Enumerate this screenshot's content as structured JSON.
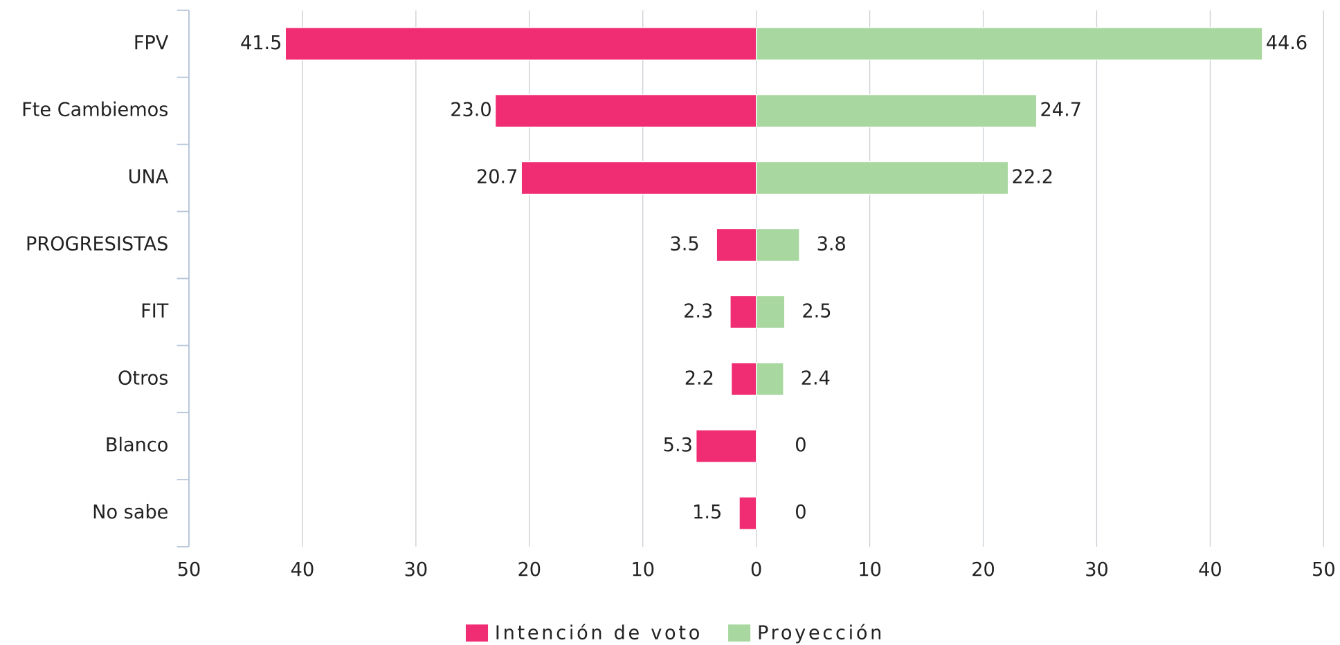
{
  "chart_data": {
    "type": "butterfly-bar",
    "categories": [
      "FPV",
      "Fte Cambiemos",
      "UNA",
      "PROGRESISTAS",
      "FIT",
      "Otros",
      "Blanco",
      "No sabe"
    ],
    "series": [
      {
        "name": "Intención de voto",
        "color": "#f02d73",
        "side": "left",
        "values": [
          41.5,
          23.0,
          20.7,
          3.5,
          2.3,
          2.2,
          5.3,
          1.5
        ],
        "value_labels": [
          "41.5",
          "23.0",
          "20.7",
          "3.5",
          "2.3",
          "2.2",
          "5.3",
          "1.5"
        ]
      },
      {
        "name": "Proyección",
        "color": "#a8d8a0",
        "side": "right",
        "values": [
          44.6,
          24.7,
          22.2,
          3.8,
          2.5,
          2.4,
          0,
          0
        ],
        "value_labels": [
          "44.6",
          "24.7",
          "22.2",
          "3.8",
          "2.5",
          "2.4",
          "0",
          "0"
        ]
      }
    ],
    "xlim": [
      -50,
      50
    ],
    "xticks": [
      {
        "value": -50,
        "label": "50"
      },
      {
        "value": -40,
        "label": "40"
      },
      {
        "value": -30,
        "label": "30"
      },
      {
        "value": -20,
        "label": "20"
      },
      {
        "value": -10,
        "label": "10"
      },
      0,
      10,
      20,
      30,
      40,
      50
    ],
    "grid": true
  }
}
